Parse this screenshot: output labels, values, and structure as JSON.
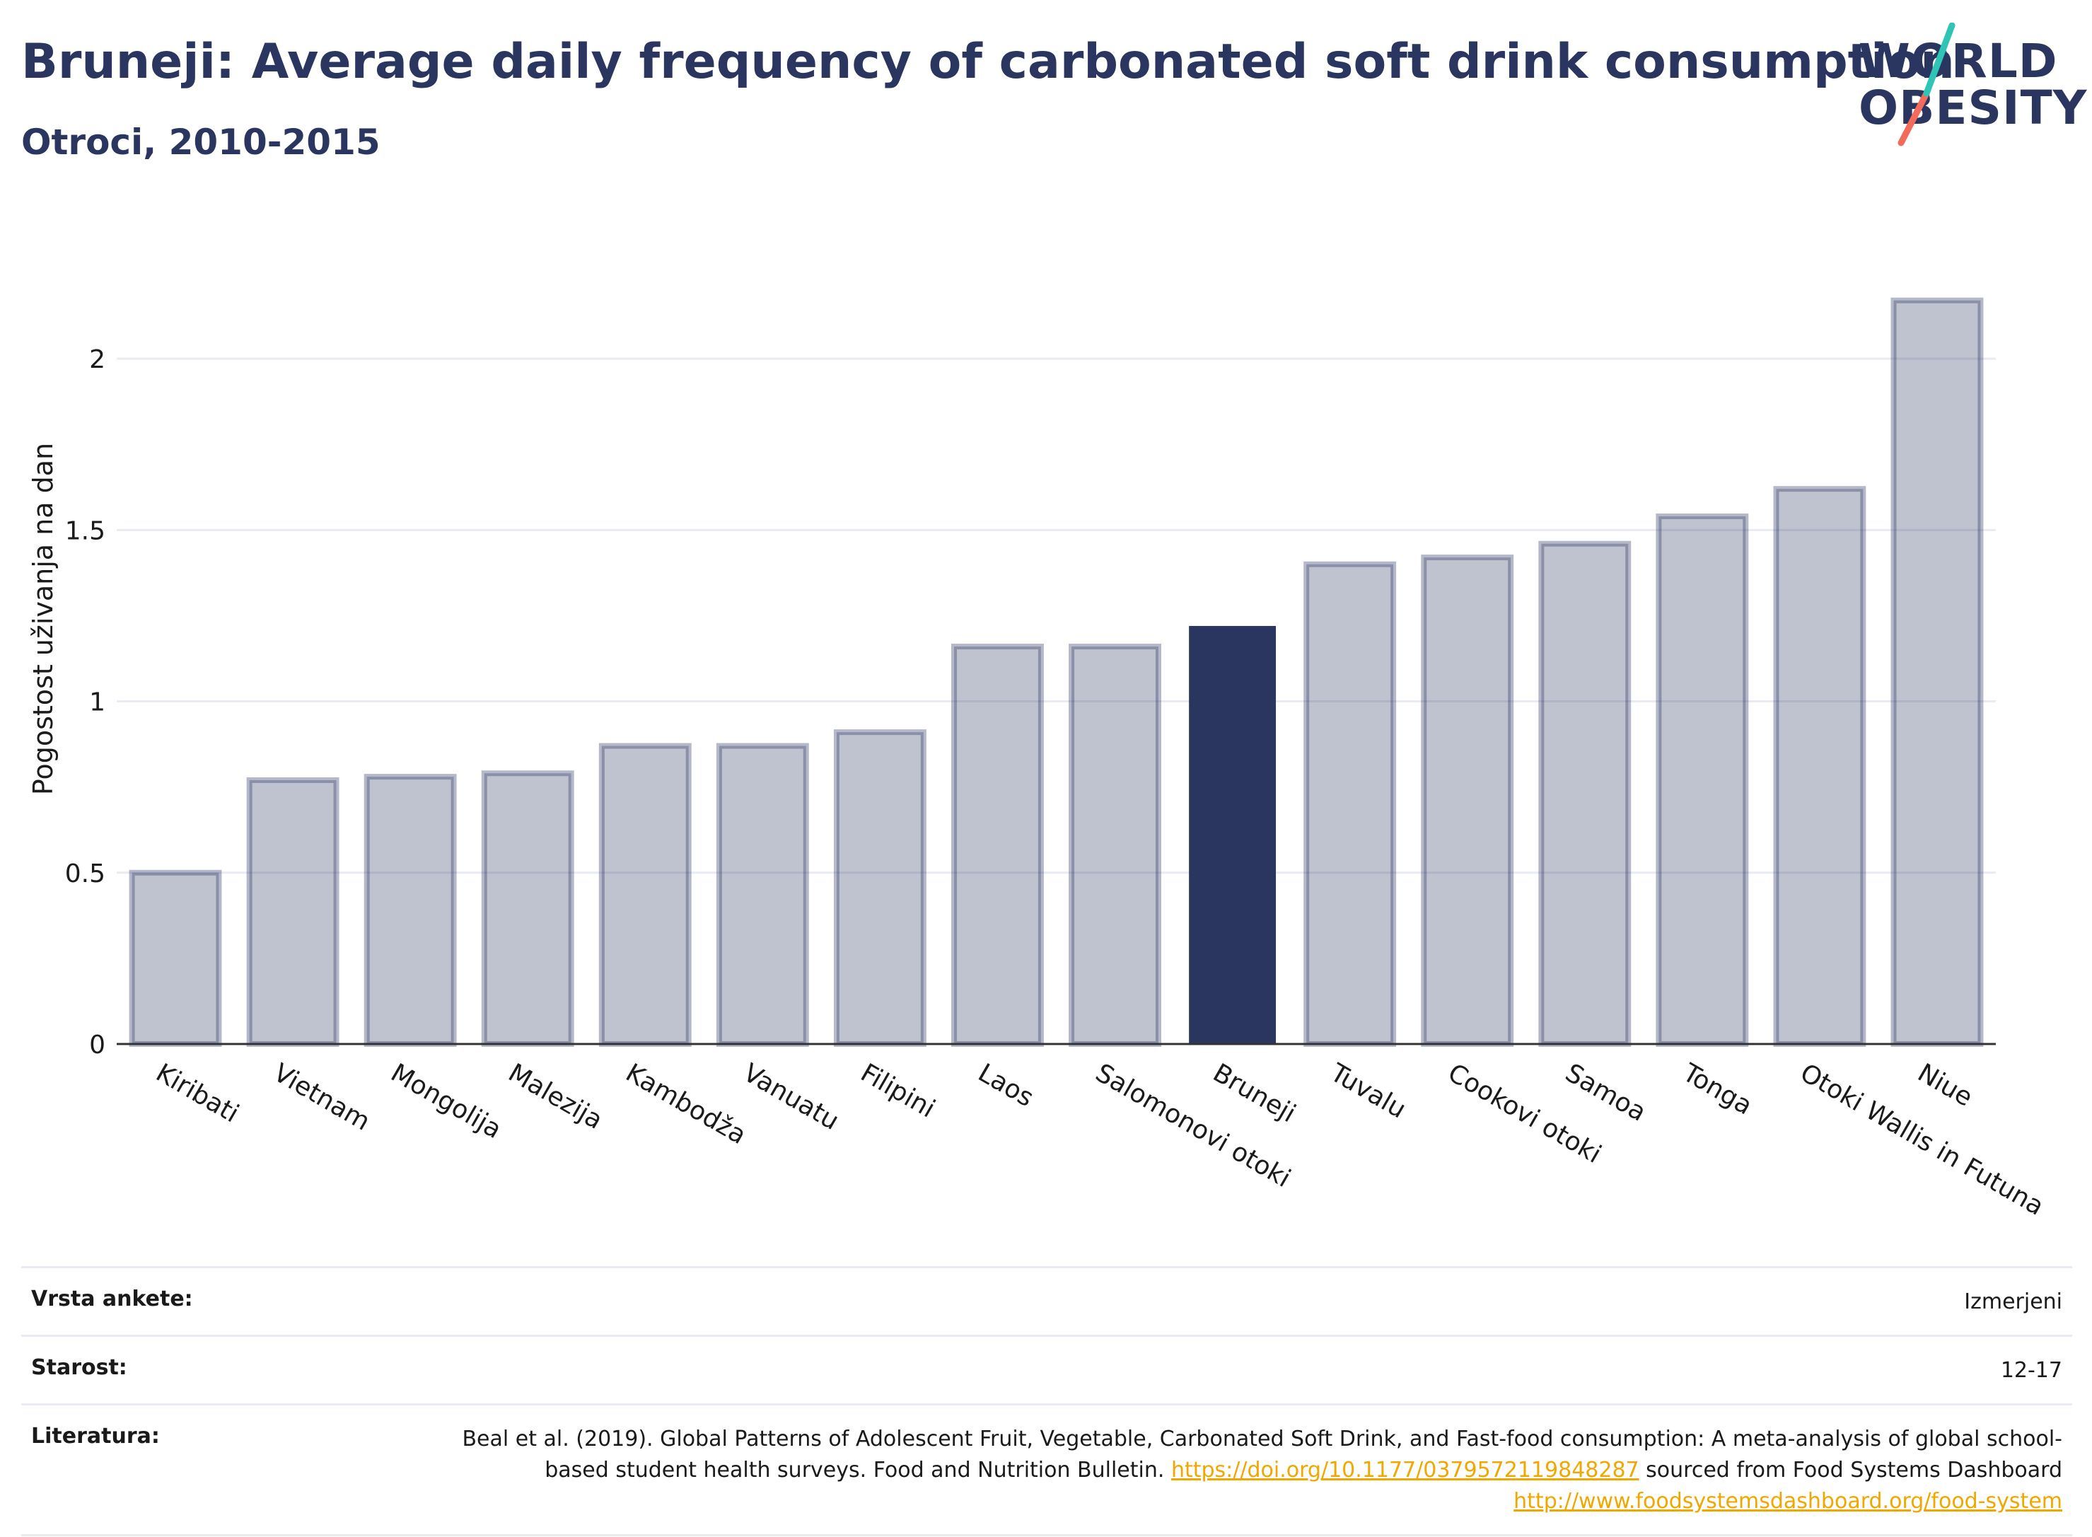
{
  "header": {
    "title": "Bruneji: Average daily frequency of carbonated soft drink consumption",
    "subtitle": "Otroci, 2010-2015"
  },
  "logo": {
    "line1": "WORLD",
    "line2": "OBESITY"
  },
  "colors": {
    "highlight": "#2a3560",
    "bar_fill": "rgba(42,53,96,0.3)",
    "bar_stroke": "rgba(42,53,96,0.35)",
    "grid": "#e8ebf2",
    "logo_teal": "#2ec4b6",
    "logo_coral": "#f26b5b"
  },
  "chart_data": {
    "type": "bar",
    "categories": [
      "Kiribati",
      "Vietnam",
      "Mongolija",
      "Malezija",
      "Kambodža",
      "Vanuatu",
      "Filipini",
      "Laos",
      "Salomonovi otoki",
      "Bruneji",
      "Tuvalu",
      "Cookovi otoki",
      "Samoa",
      "Tonga",
      "Otoki Wallis in Futuna",
      "Niue"
    ],
    "values": [
      0.5,
      0.77,
      0.78,
      0.79,
      0.87,
      0.87,
      0.91,
      1.16,
      1.16,
      1.22,
      1.4,
      1.42,
      1.46,
      1.54,
      1.62,
      2.17
    ],
    "highlight": "Bruneji",
    "ylabel": "Pogostost uživanja na dan",
    "xlabel": "",
    "ylim": [
      0,
      2.25
    ],
    "yticks": [
      0,
      0.5,
      1,
      1.5,
      2
    ],
    "ytick_labels": [
      "0",
      "0.5",
      "1",
      "1.5",
      "2"
    ],
    "grid": true
  },
  "info": {
    "survey_label": "Vrsta ankete:",
    "survey_value": "Izmerjeni",
    "age_label": "Starost:",
    "age_value": "12-17",
    "ref_label": "Literatura:",
    "ref_text1": "Beal et al. (2019). Global Patterns of Adolescent Fruit, Vegetable, Carbonated Soft Drink, and Fast-food consumption: A meta-analysis of global school-based student health surveys. Food and Nutrition Bulletin.",
    "ref_link1": "https://doi.org/10.1177/0379572119848287",
    "ref_text2": "sourced from Food Systems Dashboard",
    "ref_link2": "http://www.foodsystemsdashboard.org/food-system"
  }
}
